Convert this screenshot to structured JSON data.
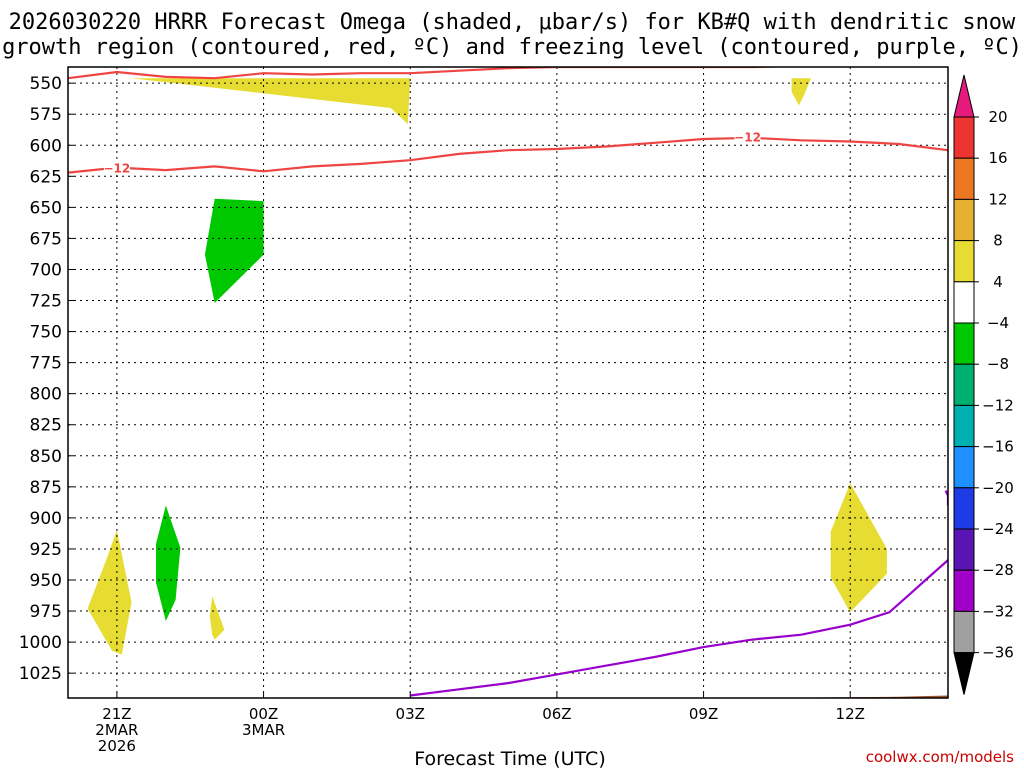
{
  "chart_data": {
    "type": "heatmap",
    "title_lines": [
      "2026030220 HRRR Forecast Omega (shaded, μbar/s) for KB#Q with dendritic snow",
      "growth region (contoured, red, ºC) and freezing level (contoured, purple, ºC)"
    ],
    "xlabel": "Forecast Time (UTC)",
    "credit": "coolwx.com/models",
    "x_range": [
      20,
      38
    ],
    "y_range": [
      537,
      1045
    ],
    "x_ticks": [
      {
        "x": 21,
        "lines": [
          "21Z",
          "2MAR",
          "2026"
        ]
      },
      {
        "x": 24,
        "lines": [
          "00Z",
          "3MAR"
        ]
      },
      {
        "x": 27,
        "lines": [
          "03Z"
        ]
      },
      {
        "x": 30,
        "lines": [
          "06Z"
        ]
      },
      {
        "x": 33,
        "lines": [
          "09Z"
        ]
      },
      {
        "x": 36,
        "lines": [
          "12Z"
        ]
      }
    ],
    "y_ticks": [
      550,
      575,
      600,
      625,
      650,
      675,
      700,
      725,
      750,
      775,
      800,
      825,
      850,
      875,
      900,
      925,
      950,
      975,
      1000,
      1025
    ],
    "grid": true,
    "colorbar": {
      "ticks": [
        "20",
        "16",
        "12",
        "8",
        "4",
        "−4",
        "−8",
        "−12",
        "−16",
        "−20",
        "−24",
        "−28",
        "−32",
        "−36"
      ],
      "bands": [
        {
          "from": 16,
          "to": 20,
          "color": "#ee3333"
        },
        {
          "from": 12,
          "to": 16,
          "color": "#ee7722"
        },
        {
          "from": 8,
          "to": 12,
          "color": "#e6b030"
        },
        {
          "from": 4,
          "to": 8,
          "color": "#e6dc32"
        },
        {
          "from": -4,
          "to": 4,
          "color": "#ffffff"
        },
        {
          "from": -8,
          "to": -4,
          "color": "#00c800"
        },
        {
          "from": -12,
          "to": -8,
          "color": "#00b070"
        },
        {
          "from": -16,
          "to": -12,
          "color": "#00b0b0"
        },
        {
          "from": -20,
          "to": -16,
          "color": "#1e90ff"
        },
        {
          "from": -24,
          "to": -20,
          "color": "#1e3ce6"
        },
        {
          "from": -28,
          "to": -24,
          "color": "#5a14b4"
        },
        {
          "from": -32,
          "to": -28,
          "color": "#a000c8"
        },
        {
          "from": -36,
          "to": -32,
          "color": "#a0a0a0"
        }
      ],
      "top_arrow_color": "#e6197d",
      "bottom_arrow_color": "#000000"
    },
    "ground_color": "#a0522d",
    "omega_regions": [
      {
        "color": "#e6dc32",
        "value_range": "4 to 8",
        "points": [
          [
            21.3,
            546
          ],
          [
            27.0,
            546
          ],
          [
            26.95,
            583
          ],
          [
            26.6,
            570
          ]
        ]
      },
      {
        "color": "#e6dc32",
        "value_range": "4 to 8",
        "points": [
          [
            34.8,
            546
          ],
          [
            35.2,
            546
          ],
          [
            35.05,
            560
          ],
          [
            34.95,
            568
          ],
          [
            34.8,
            557
          ]
        ]
      },
      {
        "color": "#00c800",
        "value_range": "-8 to -4",
        "points": [
          [
            23.0,
            643
          ],
          [
            24.0,
            645
          ],
          [
            24.0,
            688
          ],
          [
            23.0,
            727
          ],
          [
            22.8,
            688
          ]
        ]
      },
      {
        "color": "#e6dc32",
        "value_range": "4 to 8",
        "points": [
          [
            21.0,
            910
          ],
          [
            21.3,
            968
          ],
          [
            21.1,
            1010
          ],
          [
            20.9,
            1007
          ],
          [
            20.4,
            973
          ],
          [
            20.8,
            932
          ]
        ]
      },
      {
        "color": "#00c800",
        "value_range": "-8 to -4",
        "points": [
          [
            22.0,
            890
          ],
          [
            22.3,
            924
          ],
          [
            22.2,
            966
          ],
          [
            22.0,
            983
          ],
          [
            21.8,
            952
          ],
          [
            21.8,
            921
          ]
        ]
      },
      {
        "color": "#e6dc32",
        "value_range": "4 to 8",
        "points": [
          [
            22.95,
            963
          ],
          [
            23.2,
            990
          ],
          [
            23.0,
            998
          ],
          [
            22.95,
            994
          ],
          [
            22.9,
            979
          ]
        ]
      },
      {
        "color": "#e6dc32",
        "value_range": "4 to 8",
        "points": [
          [
            36.0,
            872
          ],
          [
            36.75,
            925
          ],
          [
            36.75,
            945
          ],
          [
            36.0,
            976
          ],
          [
            35.6,
            948
          ],
          [
            35.6,
            911
          ]
        ]
      }
    ],
    "dgz_contours": [
      {
        "label": "−12",
        "color": "#ee4444",
        "label_x": 20.7,
        "points": [
          [
            20.0,
            546
          ],
          [
            21.0,
            541
          ],
          [
            22.0,
            545
          ],
          [
            23.0,
            546
          ],
          [
            24.0,
            542
          ],
          [
            25.0,
            543
          ],
          [
            26.0,
            542
          ],
          [
            27.0,
            542
          ],
          [
            28.0,
            540
          ],
          [
            29.0,
            538
          ],
          [
            30.0,
            537
          ],
          [
            31.0,
            537
          ],
          [
            32.0,
            537
          ],
          [
            33.0,
            537
          ],
          [
            34.0,
            537
          ],
          [
            35.0,
            536
          ]
        ]
      },
      {
        "label": "−12",
        "color": "#ee4444",
        "label_x": 20.2,
        "points": [
          [
            20.0,
            622
          ],
          [
            21.0,
            618
          ],
          [
            22.0,
            620
          ],
          [
            23.0,
            617
          ],
          [
            24.0,
            621
          ],
          [
            25.0,
            617
          ],
          [
            26.0,
            615
          ],
          [
            27.0,
            612
          ],
          [
            28.0,
            607
          ],
          [
            29.0,
            604
          ],
          [
            30.0,
            603
          ],
          [
            31.0,
            601
          ],
          [
            32.0,
            598
          ],
          [
            33.0,
            595
          ],
          [
            34.0,
            594
          ],
          [
            35.0,
            596
          ],
          [
            36.0,
            597
          ],
          [
            37.0,
            599
          ],
          [
            38.0,
            604
          ]
        ]
      }
    ],
    "second_contour_label": {
      "text": "−12",
      "x": 33.9,
      "y": 593
    },
    "freezing_level": {
      "label": "",
      "color": "#9900cc",
      "points": [
        [
          27.0,
          1043
        ],
        [
          28.0,
          1038
        ],
        [
          29.0,
          1033
        ],
        [
          30.0,
          1026
        ],
        [
          31.0,
          1019
        ],
        [
          32.0,
          1012
        ],
        [
          33.0,
          1004
        ],
        [
          34.0,
          998
        ],
        [
          35.0,
          994
        ],
        [
          36.0,
          986
        ],
        [
          36.8,
          976
        ],
        [
          37.2,
          962
        ],
        [
          37.6,
          948
        ],
        [
          38.0,
          934
        ]
      ]
    },
    "freezing_level_top": [
      [
        37.95,
        878
      ],
      [
        38.0,
        882
      ],
      [
        38.0,
        890
      ]
    ],
    "ground_points": [
      [
        20.0,
        1046
      ],
      [
        30.0,
        1046
      ],
      [
        34.0,
        1045
      ],
      [
        37.0,
        1044
      ],
      [
        38.0,
        1043
      ],
      [
        38.0,
        1048
      ],
      [
        20.0,
        1048
      ]
    ]
  }
}
